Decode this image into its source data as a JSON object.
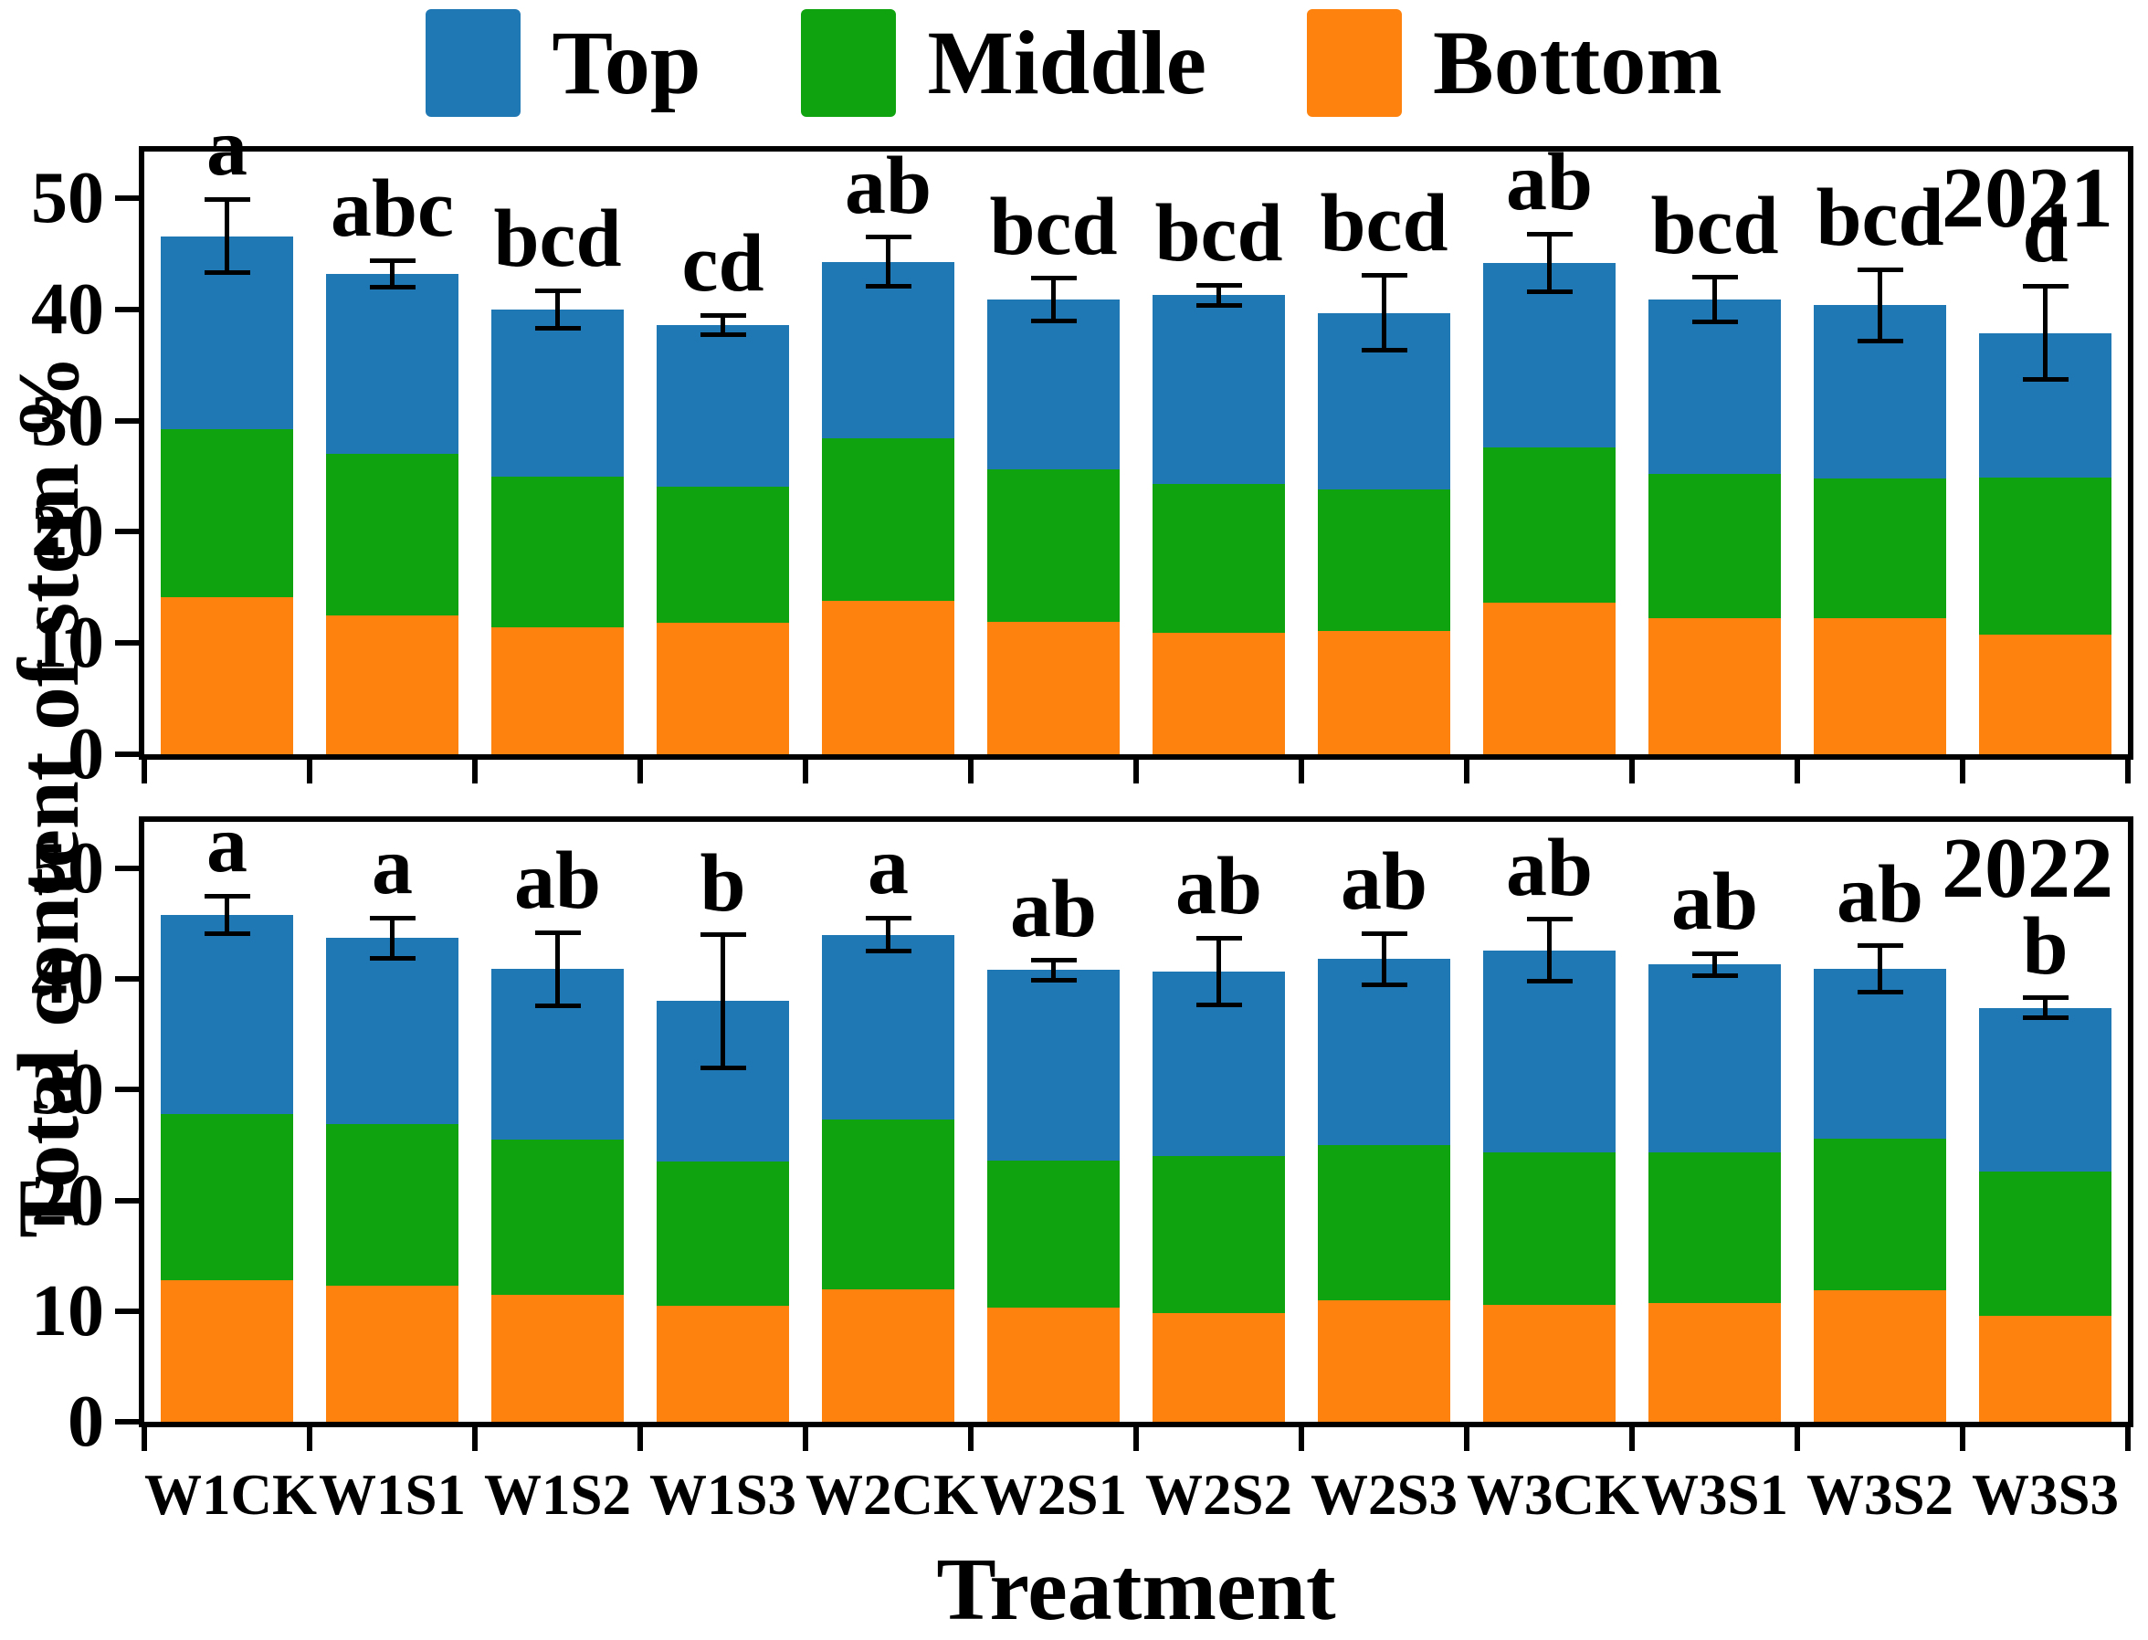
{
  "legend": {
    "items": [
      {
        "label": "Top",
        "color": "#1f77b4"
      },
      {
        "label": "Middle",
        "color": "#0fa30f"
      },
      {
        "label": "Bottom",
        "color": "#fd820e"
      }
    ]
  },
  "axes": {
    "y_title": "Total content of stem %",
    "x_title": "Treatment"
  },
  "chart_data": [
    {
      "type": "bar",
      "stacked": true,
      "year_label": "2021",
      "categories": [
        "W1CK",
        "W1S1",
        "W1S2",
        "W1S3",
        "W2CK",
        "W2S1",
        "W2S2",
        "W2S3",
        "W3CK",
        "W3S1",
        "W3S2",
        "W3S3"
      ],
      "series": [
        {
          "name": "Bottom",
          "color": "#fd820e",
          "values": [
            14.1,
            12.5,
            11.4,
            11.8,
            13.8,
            11.9,
            10.9,
            11.1,
            13.6,
            12.2,
            12.2,
            10.8
          ]
        },
        {
          "name": "Middle",
          "color": "#0fa30f",
          "values": [
            15.1,
            14.5,
            13.6,
            12.3,
            14.6,
            13.7,
            13.4,
            12.7,
            14.0,
            13.0,
            12.6,
            14.1
          ]
        },
        {
          "name": "Top",
          "color": "#1f77b4",
          "values": [
            17.4,
            16.2,
            15.0,
            14.5,
            15.9,
            15.3,
            17.0,
            15.9,
            16.6,
            15.7,
            15.6,
            13.0
          ]
        }
      ],
      "totals": [
        46.6,
        43.2,
        40.0,
        38.6,
        44.3,
        40.9,
        41.3,
        39.7,
        44.2,
        40.9,
        40.4,
        37.9
      ],
      "errors": [
        3.3,
        1.2,
        1.7,
        0.9,
        2.2,
        1.9,
        0.9,
        3.4,
        2.6,
        2.0,
        3.2,
        4.2
      ],
      "sig_letters": [
        "a",
        "abc",
        "bcd",
        "cd",
        "ab",
        "bcd",
        "bcd",
        "bcd",
        "ab",
        "bcd",
        "bcd",
        "d"
      ],
      "ylim": [
        0,
        54.2
      ],
      "yticks": [
        0,
        10,
        20,
        30,
        40,
        50
      ],
      "grid": false,
      "legend_position": "top"
    },
    {
      "type": "bar",
      "stacked": true,
      "year_label": "2022",
      "categories": [
        "W1CK",
        "W1S1",
        "W1S2",
        "W1S3",
        "W2CK",
        "W2S1",
        "W2S2",
        "W2S3",
        "W3CK",
        "W3S1",
        "W3S2",
        "W3S3"
      ],
      "series": [
        {
          "name": "Bottom",
          "color": "#fd820e",
          "values": [
            12.8,
            12.3,
            11.5,
            10.5,
            12.0,
            10.3,
            9.8,
            11.0,
            10.6,
            10.7,
            11.9,
            9.6
          ]
        },
        {
          "name": "Middle",
          "color": "#0fa30f",
          "values": [
            15.0,
            14.6,
            14.0,
            13.0,
            15.3,
            13.3,
            14.2,
            14.0,
            13.7,
            13.6,
            13.7,
            13.0
          ]
        },
        {
          "name": "Top",
          "color": "#1f77b4",
          "values": [
            18.0,
            16.8,
            15.4,
            14.5,
            16.7,
            17.2,
            16.7,
            16.8,
            18.3,
            17.0,
            15.3,
            14.8
          ]
        }
      ],
      "totals": [
        45.8,
        43.7,
        40.9,
        38.0,
        44.0,
        40.8,
        40.7,
        41.8,
        42.6,
        41.3,
        40.9,
        37.4
      ],
      "errors": [
        1.7,
        1.8,
        3.3,
        6.0,
        1.5,
        0.9,
        3.0,
        2.3,
        2.8,
        1.0,
        2.1,
        0.9
      ],
      "sig_letters": [
        "a",
        "a",
        "ab",
        "b",
        "a",
        "ab",
        "ab",
        "ab",
        "ab",
        "ab",
        "ab",
        "b"
      ],
      "ylim": [
        0,
        54.2
      ],
      "yticks": [
        0,
        10,
        20,
        30,
        40,
        50
      ],
      "grid": false,
      "legend_position": "top"
    }
  ]
}
